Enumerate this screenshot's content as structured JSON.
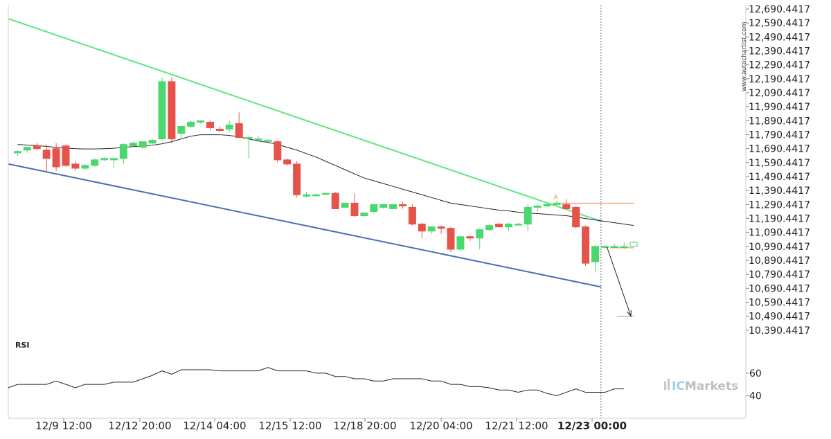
{
  "watermark": "www.autochartist.com",
  "brand": {
    "prefix": "IC",
    "name": "Markets"
  },
  "rsi_label": "RSI",
  "pattern_point_label": "A",
  "colors": {
    "bull": "#4bd86e",
    "bear": "#e5534b",
    "upper_line": "#5ee67e",
    "lower_line": "#4a6fb0",
    "ma_line": "#222222",
    "level_lines": "#e0894a",
    "grid": "#dcdcdc",
    "forecast_arrow": "#222222"
  },
  "chart_data": [
    {
      "type": "candlestick",
      "y_tick_labels": [
        "12,690.4417",
        "12,590.4417",
        "12,490.4417",
        "12,390.4417",
        "12,290.4417",
        "12,190.4417",
        "12,090.4417",
        "11,990.4417",
        "11,890.4417",
        "11,790.4417",
        "11,690.4417",
        "11,590.4417",
        "11,490.4417",
        "11,390.4417",
        "11,290.4417",
        "11,190.4417",
        "11,090.4417",
        "10,990.4417",
        "10,890.4417",
        "10,790.4417",
        "10,690.4417",
        "10,590.4417",
        "10,490.4417",
        "10,390.4417"
      ],
      "ylim": [
        10340,
        12720
      ],
      "x_tick_labels": [
        "12/9 12:00",
        "12/12 20:00",
        "12/14 04:00",
        "12/15 12:00",
        "12/18 20:00",
        "12/20 04:00",
        "12/21 12:00",
        "12/23 00:00"
      ],
      "highlighted_x_label": "12/23 00:00",
      "candles": [
        {
          "o": 11660,
          "h": 11680,
          "l": 11640,
          "c": 11670
        },
        {
          "o": 11680,
          "h": 11700,
          "l": 11660,
          "c": 11700
        },
        {
          "o": 11710,
          "h": 11730,
          "l": 11680,
          "c": 11690
        },
        {
          "o": 11680,
          "h": 11720,
          "l": 11520,
          "c": 11620
        },
        {
          "o": 11690,
          "h": 11730,
          "l": 11530,
          "c": 11560
        },
        {
          "o": 11710,
          "h": 11720,
          "l": 11560,
          "c": 11570
        },
        {
          "o": 11580,
          "h": 11600,
          "l": 11530,
          "c": 11550
        },
        {
          "o": 11550,
          "h": 11580,
          "l": 11540,
          "c": 11570
        },
        {
          "o": 11570,
          "h": 11620,
          "l": 11560,
          "c": 11610
        },
        {
          "o": 11610,
          "h": 11630,
          "l": 11600,
          "c": 11620
        },
        {
          "o": 11610,
          "h": 11620,
          "l": 11550,
          "c": 11620
        },
        {
          "o": 11620,
          "h": 11730,
          "l": 11580,
          "c": 11720
        },
        {
          "o": 11710,
          "h": 11740,
          "l": 11700,
          "c": 11730
        },
        {
          "o": 11700,
          "h": 11740,
          "l": 11690,
          "c": 11740
        },
        {
          "o": 11730,
          "h": 11760,
          "l": 11720,
          "c": 11750
        },
        {
          "o": 11760,
          "h": 12200,
          "l": 11750,
          "c": 12170
        },
        {
          "o": 12170,
          "h": 12200,
          "l": 11730,
          "c": 11760
        },
        {
          "o": 11800,
          "h": 11850,
          "l": 11770,
          "c": 11850
        },
        {
          "o": 11850,
          "h": 11890,
          "l": 11840,
          "c": 11880
        },
        {
          "o": 11880,
          "h": 11890,
          "l": 11870,
          "c": 11890
        },
        {
          "o": 11880,
          "h": 11890,
          "l": 11820,
          "c": 11840
        },
        {
          "o": 11830,
          "h": 11850,
          "l": 11810,
          "c": 11820
        },
        {
          "o": 11830,
          "h": 11890,
          "l": 11810,
          "c": 11860
        },
        {
          "o": 11870,
          "h": 11950,
          "l": 11790,
          "c": 11770
        },
        {
          "o": 11770,
          "h": 11780,
          "l": 11620,
          "c": 11770
        },
        {
          "o": 11760,
          "h": 11780,
          "l": 11750,
          "c": 11760
        },
        {
          "o": 11750,
          "h": 11760,
          "l": 11740,
          "c": 11750
        },
        {
          "o": 11740,
          "h": 11750,
          "l": 11590,
          "c": 11610
        },
        {
          "o": 11610,
          "h": 11620,
          "l": 11570,
          "c": 11580
        },
        {
          "o": 11580,
          "h": 11600,
          "l": 11340,
          "c": 11360
        },
        {
          "o": 11350,
          "h": 11380,
          "l": 11340,
          "c": 11360
        },
        {
          "o": 11360,
          "h": 11370,
          "l": 11350,
          "c": 11360
        },
        {
          "o": 11370,
          "h": 11380,
          "l": 11360,
          "c": 11370
        },
        {
          "o": 11370,
          "h": 11380,
          "l": 11260,
          "c": 11260
        },
        {
          "o": 11270,
          "h": 11300,
          "l": 11270,
          "c": 11300
        },
        {
          "o": 11300,
          "h": 11370,
          "l": 11200,
          "c": 11210
        },
        {
          "o": 11210,
          "h": 11230,
          "l": 11200,
          "c": 11230
        },
        {
          "o": 11240,
          "h": 11290,
          "l": 11230,
          "c": 11290
        },
        {
          "o": 11270,
          "h": 11290,
          "l": 11260,
          "c": 11290
        },
        {
          "o": 11260,
          "h": 11290,
          "l": 11260,
          "c": 11290
        },
        {
          "o": 11290,
          "h": 11310,
          "l": 11260,
          "c": 11280
        },
        {
          "o": 11270,
          "h": 11290,
          "l": 11140,
          "c": 11150
        },
        {
          "o": 11150,
          "h": 11160,
          "l": 11050,
          "c": 11100
        },
        {
          "o": 11100,
          "h": 11110,
          "l": 11080,
          "c": 11130
        },
        {
          "o": 11130,
          "h": 11140,
          "l": 11080,
          "c": 11120
        },
        {
          "o": 11120,
          "h": 11130,
          "l": 10950,
          "c": 10970
        },
        {
          "o": 10970,
          "h": 11060,
          "l": 10960,
          "c": 11060
        },
        {
          "o": 11060,
          "h": 11070,
          "l": 11030,
          "c": 11050
        },
        {
          "o": 11050,
          "h": 11120,
          "l": 10970,
          "c": 11110
        },
        {
          "o": 11110,
          "h": 11150,
          "l": 11100,
          "c": 11140
        },
        {
          "o": 11150,
          "h": 11160,
          "l": 11130,
          "c": 11130
        },
        {
          "o": 11130,
          "h": 11160,
          "l": 11100,
          "c": 11150
        },
        {
          "o": 11150,
          "h": 11160,
          "l": 11140,
          "c": 11150
        },
        {
          "o": 11150,
          "h": 11290,
          "l": 11100,
          "c": 11270
        },
        {
          "o": 11270,
          "h": 11300,
          "l": 11240,
          "c": 11280
        },
        {
          "o": 11280,
          "h": 11300,
          "l": 11270,
          "c": 11290
        },
        {
          "o": 11290,
          "h": 11320,
          "l": 11290,
          "c": 11300
        },
        {
          "o": 11290,
          "h": 11330,
          "l": 11260,
          "c": 11260
        },
        {
          "o": 11270,
          "h": 11280,
          "l": 11120,
          "c": 11130
        },
        {
          "o": 11130,
          "h": 11140,
          "l": 10850,
          "c": 10870
        },
        {
          "o": 10880,
          "h": 11000,
          "l": 10810,
          "c": 10990
        },
        {
          "o": 10990,
          "h": 11000,
          "l": 10980,
          "c": 10990
        },
        {
          "o": 10990,
          "h": 11010,
          "l": 10980,
          "c": 10990
        },
        {
          "o": 10990,
          "h": 11020,
          "l": 10970,
          "c": 10990
        },
        {
          "o": 10990,
          "h": 11030,
          "l": 10990,
          "c": 11020
        }
      ],
      "moving_average": [
        11720,
        11716,
        11712,
        11706,
        11700,
        11695,
        11690,
        11688,
        11688,
        11690,
        11693,
        11700,
        11705,
        11710,
        11715,
        11725,
        11740,
        11760,
        11780,
        11790,
        11790,
        11790,
        11785,
        11775,
        11760,
        11745,
        11735,
        11720,
        11700,
        11680,
        11655,
        11630,
        11600,
        11570,
        11540,
        11510,
        11480,
        11460,
        11440,
        11420,
        11400,
        11380,
        11360,
        11340,
        11320,
        11300,
        11290,
        11280,
        11270,
        11260,
        11250,
        11245,
        11235,
        11230,
        11225,
        11220,
        11215,
        11210,
        11200,
        11190,
        11180,
        11170,
        11160,
        11150,
        11140
      ],
      "upper_trendline": {
        "from": {
          "x": 0,
          "y": 12620
        },
        "to": {
          "x": 60.6,
          "y": 11170
        }
      },
      "lower_trendline": {
        "from": {
          "x": 0,
          "y": 11580
        },
        "to": {
          "x": 60.6,
          "y": 10700
        }
      },
      "resistance_level": {
        "y": 11300,
        "x_from": 55.9,
        "x_to": 64
      },
      "entry_level": {
        "y": 10980,
        "x_from": 61.5,
        "x_to": 64
      },
      "target_level": {
        "y": 10490,
        "x_from": 62.3,
        "x_to": 64
      },
      "forecast_arrow": {
        "from": {
          "x": 61.2,
          "y": 10990
        },
        "to": {
          "x": 64,
          "y": 10490
        }
      },
      "current_time_x": 60.6
    },
    {
      "type": "line",
      "title": "RSI",
      "y_tick_labels": [
        "60",
        "40"
      ],
      "ylim": [
        20,
        90
      ],
      "values": [
        47,
        50,
        50,
        50,
        50,
        53,
        50,
        47,
        50,
        50,
        50,
        52,
        52,
        52,
        55,
        58,
        62,
        59,
        63,
        63,
        63,
        63,
        62,
        62,
        62,
        62,
        62,
        65,
        62,
        62,
        62,
        62,
        60,
        60,
        57,
        57,
        55,
        55,
        53,
        53,
        55,
        55,
        55,
        55,
        53,
        53,
        50,
        50,
        48,
        48,
        47,
        45,
        45,
        43,
        45,
        45,
        42,
        40,
        43,
        46,
        43,
        43,
        43,
        46,
        46
      ]
    }
  ]
}
